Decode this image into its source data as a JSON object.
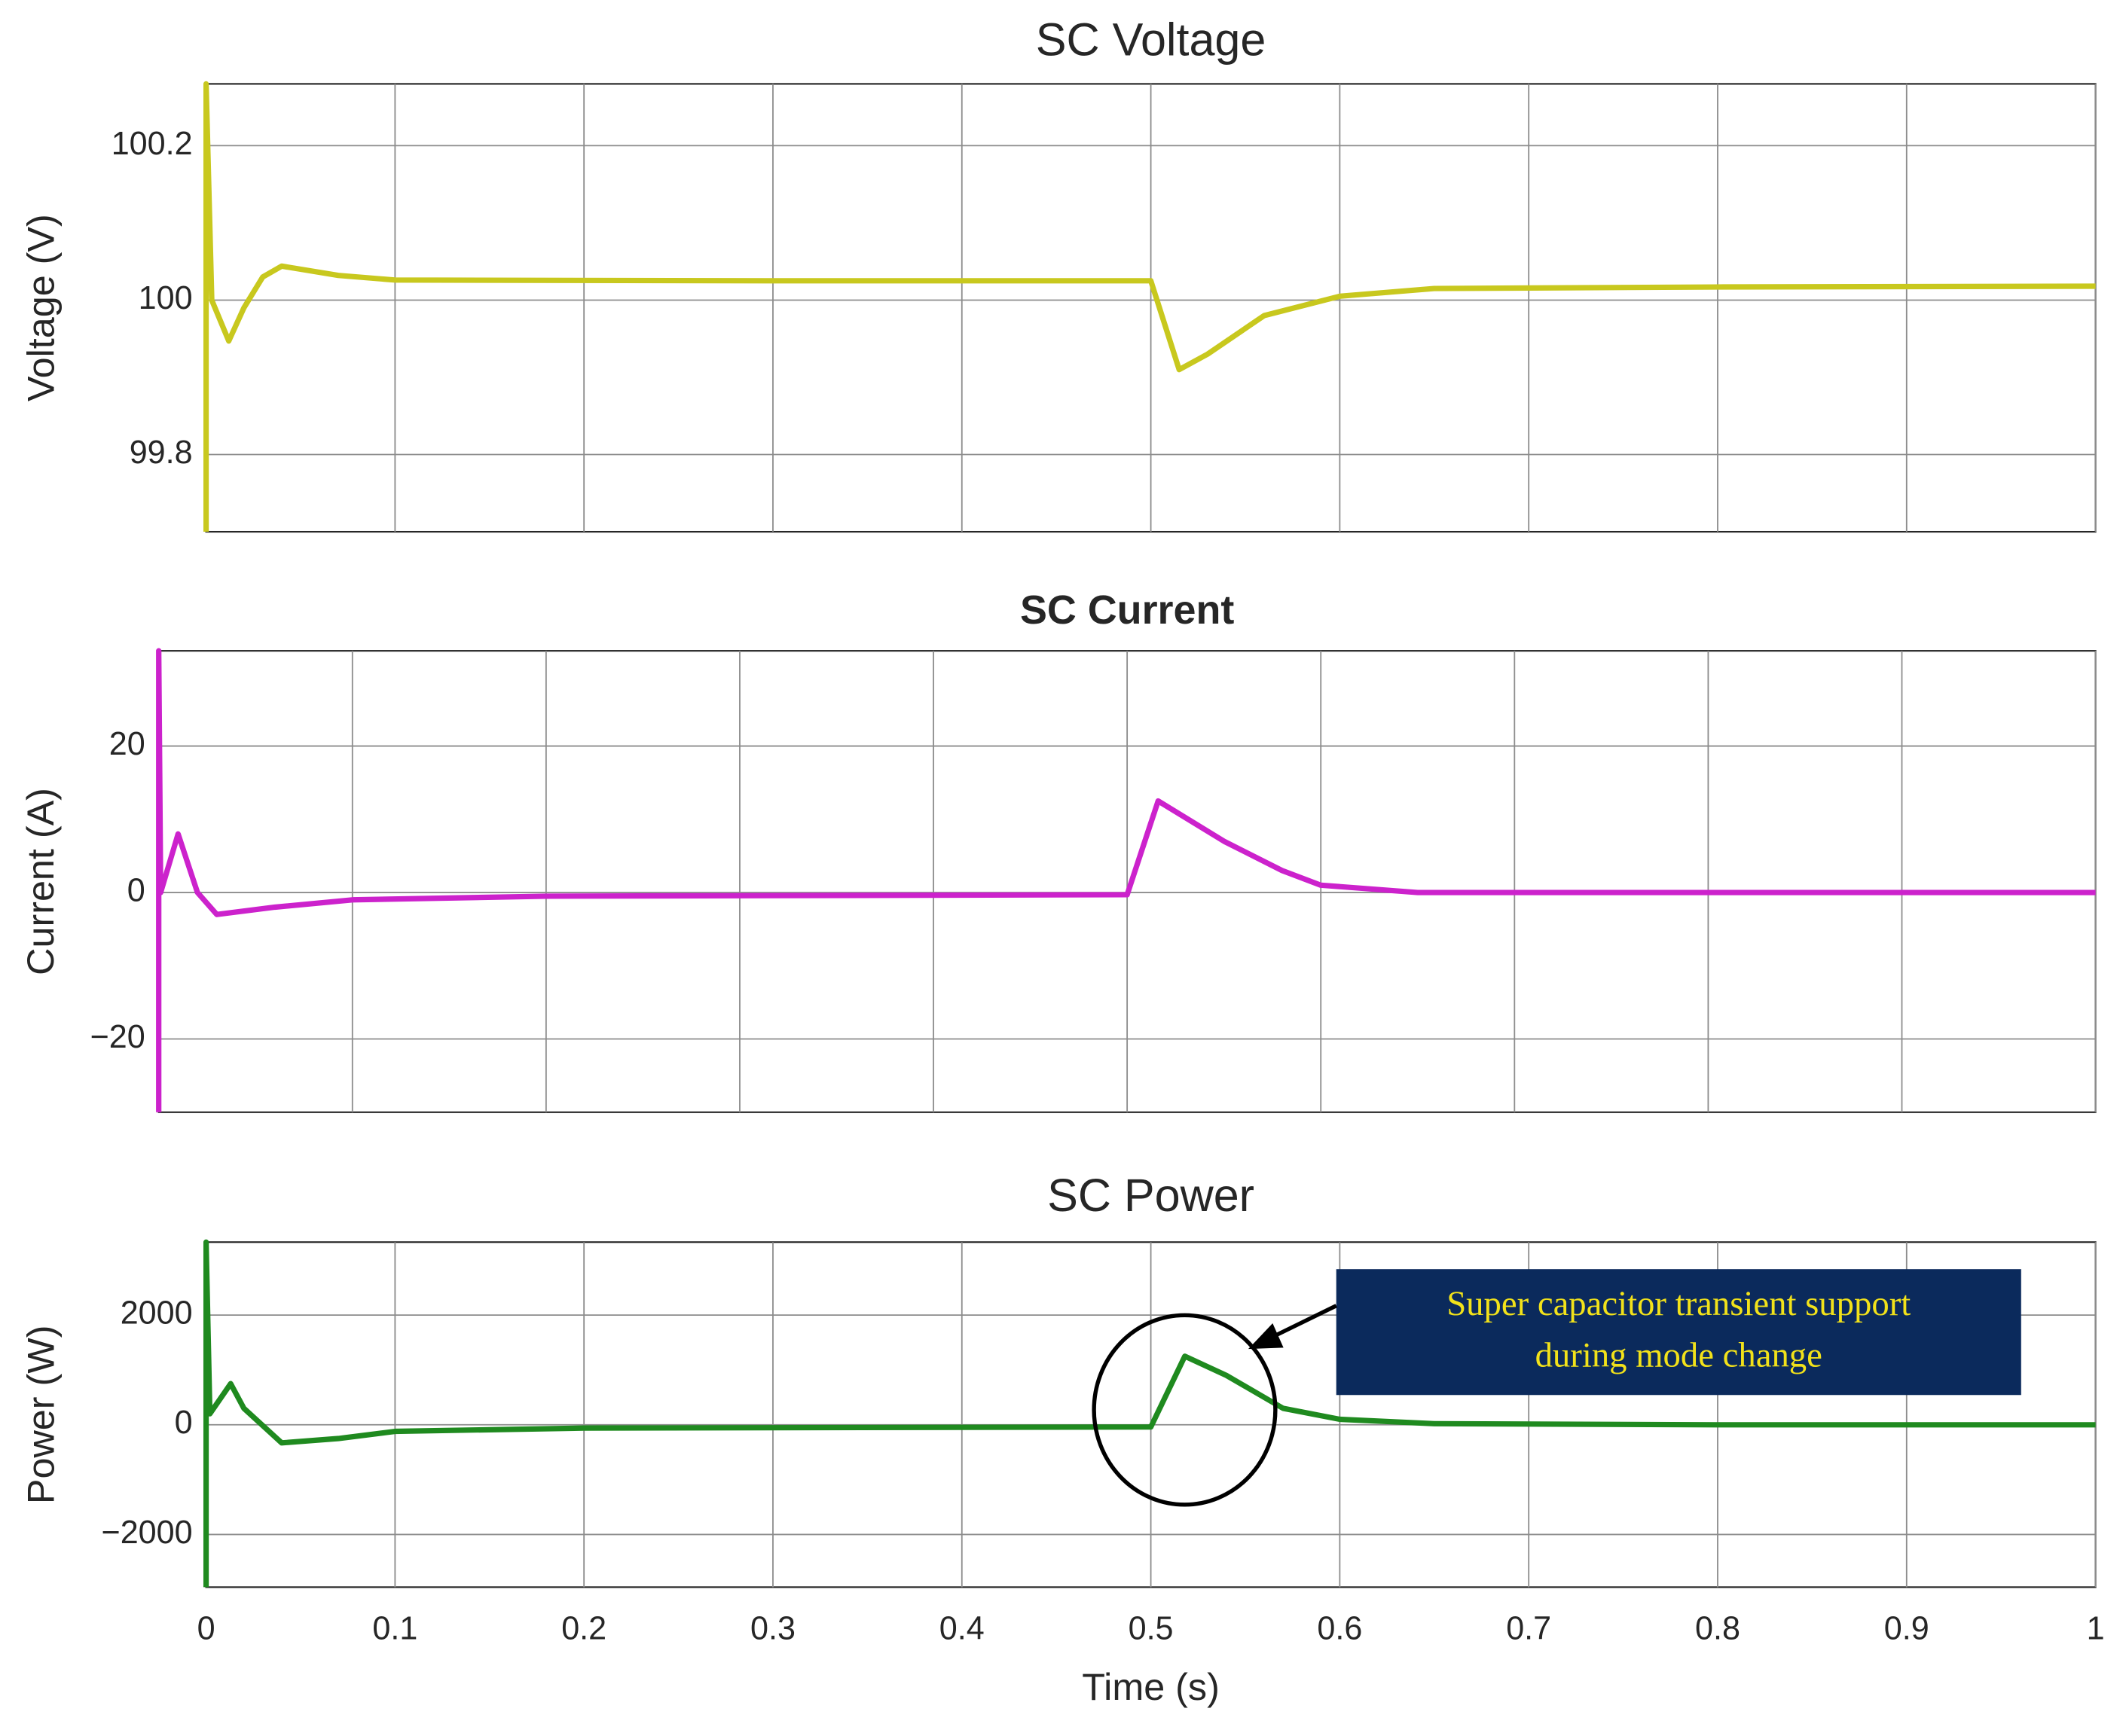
{
  "chart_data": [
    {
      "type": "line",
      "title": "SC Voltage",
      "ylabel": "Voltage (V)",
      "x": [
        0,
        0,
        0.003,
        0.012,
        0.02,
        0.03,
        0.04,
        0.07,
        0.1,
        0.3,
        0.5,
        0.515,
        0.53,
        0.56,
        0.6,
        0.65,
        0.8,
        1
      ],
      "series": [
        {
          "name": "Voltage",
          "color": "#c8c81e",
          "values": [
            99.7,
            100.28,
            100,
            99.947,
            99.99,
            100.03,
            100.044,
            100.032,
            100.026,
            100.025,
            100.025,
            99.91,
            99.93,
            99.98,
            100.005,
            100.015,
            100.017,
            100.018
          ]
        }
      ],
      "xlim": [
        0,
        1
      ],
      "xticks": [
        0,
        0.1,
        0.2,
        0.3,
        0.4,
        0.5,
        0.6,
        0.7,
        0.8,
        0.9,
        1
      ],
      "ylim": [
        99.7,
        100.28
      ],
      "yticks": [
        99.8,
        100,
        100.2
      ],
      "grid": true
    },
    {
      "type": "line",
      "title": "SC Current",
      "ylabel": "Current (A)",
      "x": [
        0,
        0,
        0.001,
        0.01,
        0.02,
        0.03,
        0.06,
        0.1,
        0.2,
        0.5,
        0.516,
        0.55,
        0.58,
        0.6,
        0.65,
        0.8,
        1
      ],
      "series": [
        {
          "name": "Current",
          "color": "#cc22cc",
          "values": [
            -30,
            33,
            0,
            8,
            0,
            -3,
            -2,
            -1,
            -0.5,
            -0.3,
            12.5,
            7,
            3,
            1,
            0,
            0,
            0
          ]
        }
      ],
      "xlim": [
        0,
        1
      ],
      "xticks": [
        0,
        0.1,
        0.2,
        0.3,
        0.4,
        0.5,
        0.6,
        0.7,
        0.8,
        0.9,
        1
      ],
      "ylim": [
        -30,
        33
      ],
      "yticks": [
        {
          "value": -20,
          "label": "−20"
        },
        0,
        20
      ],
      "grid": true
    },
    {
      "type": "line",
      "title": "SC Power",
      "ylabel": "Power (W)",
      "xlabel": "Time (s)",
      "x": [
        0,
        0,
        0.002,
        0.013,
        0.02,
        0.04,
        0.07,
        0.1,
        0.2,
        0.5,
        0.518,
        0.54,
        0.57,
        0.6,
        0.65,
        0.8,
        1
      ],
      "series": [
        {
          "name": "Power",
          "color": "#1f8a1f",
          "values": [
            -2960,
            3330,
            200,
            750,
            300,
            -330,
            -250,
            -120,
            -60,
            -40,
            1250,
            900,
            300,
            100,
            20,
            0,
            0
          ]
        }
      ],
      "xlim": [
        0,
        1
      ],
      "xticks": [
        0,
        0.1,
        0.2,
        0.3,
        0.4,
        0.5,
        0.6,
        0.7,
        0.8,
        0.9,
        1
      ],
      "ylim": [
        -2960,
        3330
      ],
      "yticks": [
        {
          "value": -2000,
          "label": "−2000"
        },
        0,
        2000
      ],
      "grid": true,
      "annotation": [
        "Super capacitor transient support",
        "during mode change"
      ]
    }
  ]
}
